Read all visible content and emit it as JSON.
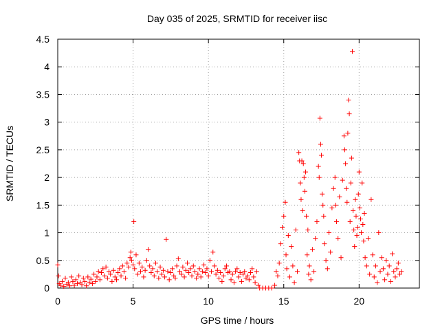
{
  "chart_data": {
    "type": "scatter",
    "title": "Day 035 of 2025, SRMTID for receiver iisc",
    "xlabel": "GPS time / hours",
    "ylabel": "SRMTID / TECUs",
    "xlim": [
      0,
      24
    ],
    "ylim": [
      0,
      4.5
    ],
    "x_ticks": [
      0,
      5,
      10,
      15,
      20
    ],
    "x_tick_labels": [
      "0",
      "5",
      "10",
      "15",
      "20"
    ],
    "y_ticks": [
      0,
      0.5,
      1,
      1.5,
      2,
      2.5,
      3,
      3.5,
      4,
      4.5
    ],
    "y_tick_labels": [
      "0",
      "0.5",
      "1",
      "1.5",
      "2",
      "2.5",
      "3",
      "3.5",
      "4",
      "4.5"
    ],
    "grid": true,
    "marker": "+",
    "color": "#ff0000",
    "series": [
      {
        "name": "SRMTID",
        "points": [
          [
            0.0,
            0.42
          ],
          [
            0.05,
            0.22
          ],
          [
            0.1,
            0.08
          ],
          [
            0.2,
            0.05
          ],
          [
            0.3,
            0.12
          ],
          [
            0.4,
            0.03
          ],
          [
            0.5,
            0.18
          ],
          [
            0.6,
            0.07
          ],
          [
            0.7,
            0.1
          ],
          [
            0.8,
            0.04
          ],
          [
            0.9,
            0.2
          ],
          [
            1.0,
            0.12
          ],
          [
            1.1,
            0.05
          ],
          [
            1.2,
            0.15
          ],
          [
            1.3,
            0.08
          ],
          [
            1.4,
            0.22
          ],
          [
            1.5,
            0.1
          ],
          [
            1.6,
            0.06
          ],
          [
            1.7,
            0.18
          ],
          [
            1.8,
            0.12
          ],
          [
            1.9,
            0.04
          ],
          [
            2.0,
            0.2
          ],
          [
            2.1,
            0.1
          ],
          [
            2.2,
            0.16
          ],
          [
            2.3,
            0.08
          ],
          [
            2.4,
            0.25
          ],
          [
            2.5,
            0.12
          ],
          [
            2.6,
            0.2
          ],
          [
            2.7,
            0.3
          ],
          [
            2.8,
            0.15
          ],
          [
            2.9,
            0.28
          ],
          [
            3.0,
            0.35
          ],
          [
            3.1,
            0.22
          ],
          [
            3.2,
            0.38
          ],
          [
            3.3,
            0.18
          ],
          [
            3.4,
            0.3
          ],
          [
            3.5,
            0.25
          ],
          [
            3.6,
            0.12
          ],
          [
            3.7,
            0.32
          ],
          [
            3.8,
            0.2
          ],
          [
            3.9,
            0.15
          ],
          [
            4.0,
            0.28
          ],
          [
            4.1,
            0.35
          ],
          [
            4.2,
            0.22
          ],
          [
            4.3,
            0.4
          ],
          [
            4.4,
            0.3
          ],
          [
            4.5,
            0.18
          ],
          [
            4.6,
            0.45
          ],
          [
            4.7,
            0.38
          ],
          [
            4.8,
            0.55
          ],
          [
            4.85,
            0.65
          ],
          [
            4.9,
            0.5
          ],
          [
            5.0,
            0.42
          ],
          [
            5.05,
            1.2
          ],
          [
            5.1,
            0.35
          ],
          [
            5.2,
            0.6
          ],
          [
            5.3,
            0.25
          ],
          [
            5.4,
            0.45
          ],
          [
            5.5,
            0.3
          ],
          [
            5.6,
            0.38
          ],
          [
            5.7,
            0.2
          ],
          [
            5.8,
            0.32
          ],
          [
            5.9,
            0.5
          ],
          [
            6.0,
            0.7
          ],
          [
            6.1,
            0.4
          ],
          [
            6.2,
            0.28
          ],
          [
            6.3,
            0.35
          ],
          [
            6.4,
            0.22
          ],
          [
            6.5,
            0.45
          ],
          [
            6.6,
            0.3
          ],
          [
            6.7,
            0.18
          ],
          [
            6.8,
            0.38
          ],
          [
            6.9,
            0.25
          ],
          [
            7.0,
            0.32
          ],
          [
            7.1,
            0.2
          ],
          [
            7.2,
            0.88
          ],
          [
            7.3,
            0.3
          ],
          [
            7.4,
            0.15
          ],
          [
            7.5,
            0.28
          ],
          [
            7.6,
            0.35
          ],
          [
            7.7,
            0.22
          ],
          [
            7.8,
            0.18
          ],
          [
            7.9,
            0.4
          ],
          [
            8.0,
            0.53
          ],
          [
            8.1,
            0.3
          ],
          [
            8.2,
            0.25
          ],
          [
            8.3,
            0.38
          ],
          [
            8.4,
            0.2
          ],
          [
            8.5,
            0.32
          ],
          [
            8.6,
            0.45
          ],
          [
            8.7,
            0.28
          ],
          [
            8.8,
            0.35
          ],
          [
            8.9,
            0.22
          ],
          [
            9.0,
            0.4
          ],
          [
            9.1,
            0.3
          ],
          [
            9.2,
            0.18
          ],
          [
            9.3,
            0.25
          ],
          [
            9.4,
            0.35
          ],
          [
            9.5,
            0.2
          ],
          [
            9.6,
            0.3
          ],
          [
            9.7,
            0.42
          ],
          [
            9.8,
            0.28
          ],
          [
            9.9,
            0.35
          ],
          [
            10.0,
            0.22
          ],
          [
            10.1,
            0.5
          ],
          [
            10.2,
            0.3
          ],
          [
            10.3,
            0.65
          ],
          [
            10.4,
            0.4
          ],
          [
            10.5,
            0.25
          ],
          [
            10.6,
            0.32
          ],
          [
            10.7,
            0.18
          ],
          [
            10.8,
            0.28
          ],
          [
            10.9,
            0.12
          ],
          [
            11.0,
            0.22
          ],
          [
            11.1,
            0.35
          ],
          [
            11.2,
            0.4
          ],
          [
            11.3,
            0.28
          ],
          [
            11.4,
            0.3
          ],
          [
            11.5,
            0.15
          ],
          [
            11.6,
            0.25
          ],
          [
            11.7,
            0.1
          ],
          [
            11.8,
            0.3
          ],
          [
            11.9,
            0.35
          ],
          [
            12.0,
            0.2
          ],
          [
            12.1,
            0.28
          ],
          [
            12.2,
            0.12
          ],
          [
            12.3,
            0.25
          ],
          [
            12.4,
            0.3
          ],
          [
            12.5,
            0.18
          ],
          [
            12.6,
            0.22
          ],
          [
            12.7,
            0.15
          ],
          [
            12.8,
            0.28
          ],
          [
            12.9,
            0.35
          ],
          [
            13.0,
            0.2
          ],
          [
            13.1,
            0.1
          ],
          [
            13.2,
            0.3
          ],
          [
            13.3,
            0.05
          ],
          [
            13.4,
            0.0
          ],
          [
            13.6,
            0.0
          ],
          [
            13.8,
            0.0
          ],
          [
            14.0,
            0.0
          ],
          [
            14.2,
            0.0
          ],
          [
            14.4,
            0.05
          ],
          [
            14.5,
            0.3
          ],
          [
            14.6,
            0.22
          ],
          [
            14.7,
            0.45
          ],
          [
            14.8,
            0.8
          ],
          [
            14.9,
            1.1
          ],
          [
            15.0,
            1.3
          ],
          [
            15.1,
            1.55
          ],
          [
            15.15,
            0.6
          ],
          [
            15.2,
            0.35
          ],
          [
            15.3,
            0.95
          ],
          [
            15.4,
            0.2
          ],
          [
            15.5,
            0.75
          ],
          [
            15.6,
            0.4
          ],
          [
            15.7,
            0.1
          ],
          [
            15.8,
            1.05
          ],
          [
            15.9,
            0.3
          ],
          [
            16.0,
            2.45
          ],
          [
            16.05,
            2.3
          ],
          [
            16.1,
            1.9
          ],
          [
            16.15,
            1.6
          ],
          [
            16.2,
            2.3
          ],
          [
            16.25,
            1.4
          ],
          [
            16.3,
            2.25
          ],
          [
            16.35,
            2.0
          ],
          [
            16.4,
            1.75
          ],
          [
            16.45,
            2.1
          ],
          [
            16.5,
            1.3
          ],
          [
            16.55,
            0.6
          ],
          [
            16.6,
            1.05
          ],
          [
            16.65,
            0.25
          ],
          [
            16.7,
            0.4
          ],
          [
            16.8,
            0.15
          ],
          [
            16.9,
            0.7
          ],
          [
            17.0,
            0.3
          ],
          [
            17.1,
            0.9
          ],
          [
            17.2,
            1.2
          ],
          [
            17.3,
            2.2
          ],
          [
            17.35,
            2.0
          ],
          [
            17.4,
            3.07
          ],
          [
            17.45,
            2.6
          ],
          [
            17.5,
            2.4
          ],
          [
            17.55,
            1.7
          ],
          [
            17.6,
            1.5
          ],
          [
            17.65,
            1.3
          ],
          [
            17.7,
            0.8
          ],
          [
            17.8,
            0.5
          ],
          [
            17.9,
            0.35
          ],
          [
            18.0,
            1.0
          ],
          [
            18.1,
            0.65
          ],
          [
            18.2,
            1.45
          ],
          [
            18.3,
            1.8
          ],
          [
            18.4,
            2.0
          ],
          [
            18.45,
            1.5
          ],
          [
            18.5,
            1.2
          ],
          [
            18.6,
            0.9
          ],
          [
            18.7,
            1.65
          ],
          [
            18.8,
            0.55
          ],
          [
            18.9,
            1.95
          ],
          [
            19.0,
            2.75
          ],
          [
            19.05,
            2.5
          ],
          [
            19.1,
            2.25
          ],
          [
            19.15,
            1.8
          ],
          [
            19.2,
            1.55
          ],
          [
            19.25,
            2.8
          ],
          [
            19.3,
            3.4
          ],
          [
            19.35,
            3.15
          ],
          [
            19.4,
            1.2
          ],
          [
            19.45,
            1.9
          ],
          [
            19.5,
            2.35
          ],
          [
            19.55,
            4.28
          ],
          [
            19.6,
            1.4
          ],
          [
            19.65,
            1.05
          ],
          [
            19.7,
            0.75
          ],
          [
            19.75,
            1.6
          ],
          [
            19.8,
            1.3
          ],
          [
            19.85,
            0.95
          ],
          [
            19.9,
            1.1
          ],
          [
            19.95,
            1.7
          ],
          [
            20.0,
            2.1
          ],
          [
            20.05,
            1.45
          ],
          [
            20.1,
            1.25
          ],
          [
            20.15,
            1.0
          ],
          [
            20.2,
            1.9
          ],
          [
            20.25,
            1.15
          ],
          [
            20.3,
            0.85
          ],
          [
            20.35,
            1.35
          ],
          [
            20.4,
            0.55
          ],
          [
            20.5,
            0.4
          ],
          [
            20.6,
            0.9
          ],
          [
            20.7,
            0.25
          ],
          [
            20.8,
            1.6
          ],
          [
            20.9,
            0.6
          ],
          [
            21.0,
            0.2
          ],
          [
            21.1,
            0.4
          ],
          [
            21.2,
            0.1
          ],
          [
            21.3,
            1.0
          ],
          [
            21.4,
            0.3
          ],
          [
            21.5,
            0.55
          ],
          [
            21.6,
            0.35
          ],
          [
            21.7,
            0.15
          ],
          [
            21.8,
            0.5
          ],
          [
            21.9,
            0.25
          ],
          [
            22.0,
            0.4
          ],
          [
            22.1,
            0.12
          ],
          [
            22.2,
            0.62
          ],
          [
            22.3,
            0.3
          ],
          [
            22.4,
            0.2
          ],
          [
            22.5,
            0.35
          ],
          [
            22.6,
            0.45
          ],
          [
            22.7,
            0.25
          ],
          [
            22.8,
            0.3
          ]
        ]
      }
    ]
  }
}
